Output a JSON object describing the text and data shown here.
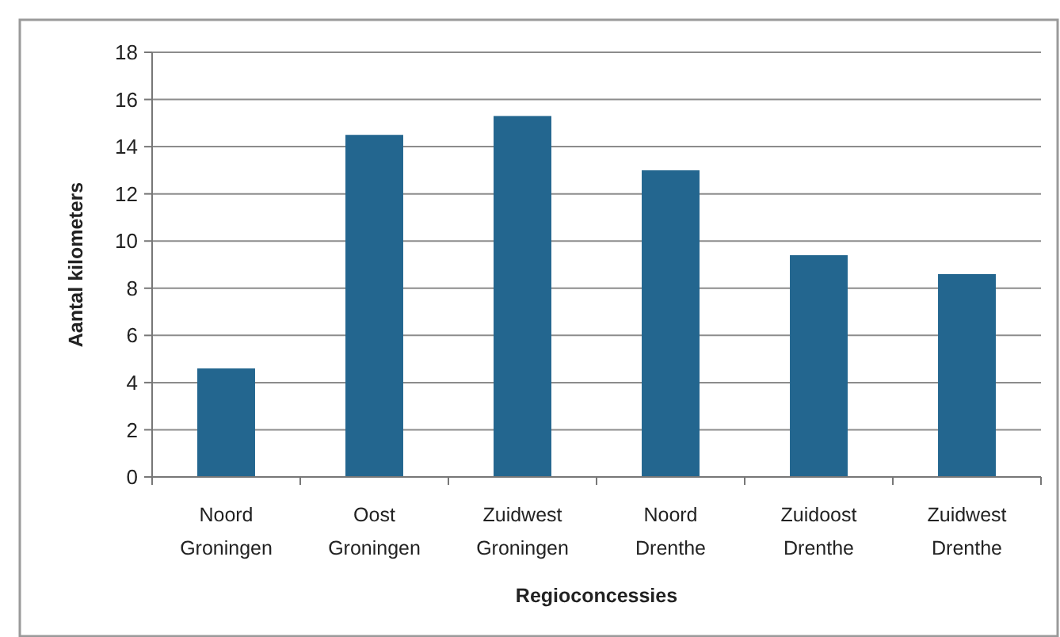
{
  "chart_data": {
    "type": "bar",
    "xlabel": "Regioconcessies",
    "ylabel": "Aantal kilometers",
    "categories": [
      "Noord Groningen",
      "Oost Groningen",
      "Zuidwest Groningen",
      "Noord Drenthe",
      "Zuidoost Drenthe",
      "Zuidwest Drenthe"
    ],
    "values": [
      4.6,
      14.5,
      15.3,
      13.0,
      9.4,
      8.6
    ],
    "color": "#23668f",
    "ylim": [
      0,
      18
    ],
    "yticks": [
      0,
      2,
      4,
      6,
      8,
      10,
      12,
      14,
      16,
      18
    ],
    "grid": "y"
  }
}
